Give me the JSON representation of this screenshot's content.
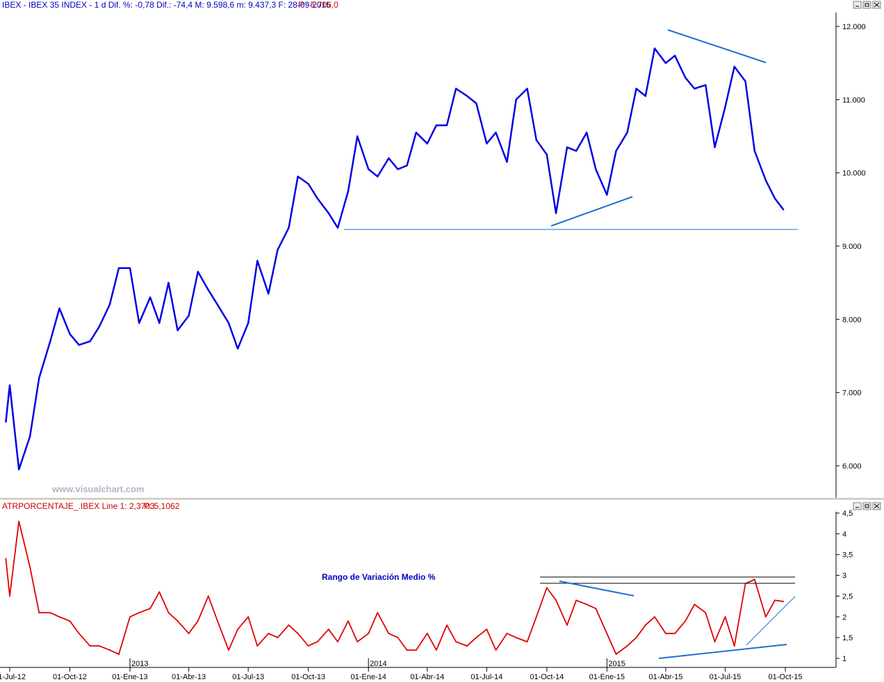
{
  "header": {
    "main_info": "IBEX - IBEX 35 INDEX - 1 d Dif. %: -0,78 Dif.: -74,4 M: 9.598,6 m: 9.437,3 F: 28-09-2015",
    "main_p": "P : 5.706,0",
    "lower_info": "ATRPORCENTAJE_.IBEX Line 1: 2,3703",
    "lower_p": "P: 5,1062",
    "watermark": "www.visualchart.com",
    "annotation": "Rango de Variación Medio %"
  },
  "colors": {
    "price": "#0000e6",
    "atr": "#e00000",
    "trendline": "#1f6fd1",
    "text_blue": "#0000c0",
    "text_red": "#cc0000"
  },
  "chart_data": [
    {
      "type": "line",
      "title": "IBEX - IBEX 35 INDEX",
      "ylim": [
        5500,
        12300
      ],
      "yticks": [
        "12.000",
        "11.000",
        "10.000",
        "9.000",
        "8.000",
        "7.000",
        "6.000"
      ],
      "ytick_values": [
        12000,
        11000,
        10000,
        9000,
        8000,
        7000,
        6000
      ],
      "x": [
        "2012-06-25",
        "2012-07-01",
        "2012-07-15",
        "2012-08-01",
        "2012-08-15",
        "2012-09-01",
        "2012-09-15",
        "2012-10-01",
        "2012-10-15",
        "2012-11-01",
        "2012-11-15",
        "2012-12-01",
        "2012-12-15",
        "2013-01-01",
        "2013-01-15",
        "2013-02-01",
        "2013-02-15",
        "2013-03-01",
        "2013-03-15",
        "2013-04-01",
        "2013-04-15",
        "2013-05-01",
        "2013-05-15",
        "2013-06-01",
        "2013-06-15",
        "2013-07-01",
        "2013-07-15",
        "2013-08-01",
        "2013-08-15",
        "2013-09-01",
        "2013-09-15",
        "2013-10-01",
        "2013-10-15",
        "2013-11-01",
        "2013-11-15",
        "2013-12-01",
        "2013-12-15",
        "2014-01-01",
        "2014-01-15",
        "2014-02-01",
        "2014-02-15",
        "2014-03-01",
        "2014-03-15",
        "2014-04-01",
        "2014-04-15",
        "2014-05-01",
        "2014-05-15",
        "2014-06-01",
        "2014-06-15",
        "2014-07-01",
        "2014-07-15",
        "2014-08-01",
        "2014-08-15",
        "2014-09-01",
        "2014-09-15",
        "2014-10-01",
        "2014-10-15",
        "2014-11-01",
        "2014-11-15",
        "2014-12-01",
        "2014-12-15",
        "2015-01-01",
        "2015-01-15",
        "2015-02-01",
        "2015-02-15",
        "2015-03-01",
        "2015-03-15",
        "2015-04-01",
        "2015-04-15",
        "2015-05-01",
        "2015-05-15",
        "2015-06-01",
        "2015-06-15",
        "2015-07-01",
        "2015-07-15",
        "2015-08-01",
        "2015-08-15",
        "2015-09-01",
        "2015-09-15",
        "2015-09-28"
      ],
      "series": [
        {
          "name": "IBEX 35",
          "values": [
            6600,
            7100,
            5950,
            6400,
            7200,
            7700,
            8150,
            7800,
            7650,
            7700,
            7900,
            8200,
            8700,
            8700,
            7950,
            8300,
            7950,
            8500,
            7850,
            8050,
            8650,
            8400,
            8200,
            7950,
            7600,
            7950,
            8800,
            8350,
            8950,
            9250,
            9950,
            9850,
            9650,
            9450,
            9250,
            9750,
            10500,
            10050,
            9950,
            10200,
            10050,
            10100,
            10550,
            10400,
            10650,
            10650,
            11150,
            11050,
            10950,
            10400,
            10550,
            10150,
            11000,
            11150,
            10450,
            10250,
            9450,
            10350,
            10300,
            10550,
            10050,
            9700,
            10300,
            10550,
            11150,
            11050,
            11700,
            11500,
            11600,
            11300,
            11150,
            11200,
            10350,
            10900,
            11450,
            11250,
            10300,
            9900,
            9650,
            9500
          ]
        }
      ]
    },
    {
      "type": "line",
      "title": "ATRPORCENTAJE_.IBEX",
      "ylim": [
        0.85,
        4.55
      ],
      "yticks": [
        "4,5",
        "4",
        "3,5",
        "3",
        "2,5",
        "2",
        "1,5",
        "1"
      ],
      "ytick_values": [
        4.5,
        4,
        3.5,
        3,
        2.5,
        2,
        1.5,
        1
      ],
      "xticks": [
        "01-Jul-12",
        "01-Oct-12",
        "01-Ene-13",
        "01-Abr-13",
        "01-Jul-13",
        "01-Oct-13",
        "01-Ene-14",
        "01-Abr-14",
        "01-Jul-14",
        "01-Oct-14",
        "01-Ene-15",
        "01-Abr-15",
        "01-Jul-15",
        "01-Oct-15"
      ],
      "year_labels": [
        "2013",
        "2014",
        "2015"
      ],
      "x": [
        "2012-06-25",
        "2012-07-01",
        "2012-07-15",
        "2012-08-01",
        "2012-08-15",
        "2012-09-01",
        "2012-09-15",
        "2012-10-01",
        "2012-10-15",
        "2012-11-01",
        "2012-11-15",
        "2012-12-01",
        "2012-12-15",
        "2013-01-01",
        "2013-01-15",
        "2013-02-01",
        "2013-02-15",
        "2013-03-01",
        "2013-03-15",
        "2013-04-01",
        "2013-04-15",
        "2013-05-01",
        "2013-05-15",
        "2013-06-01",
        "2013-06-15",
        "2013-07-01",
        "2013-07-15",
        "2013-08-01",
        "2013-08-15",
        "2013-09-01",
        "2013-09-15",
        "2013-10-01",
        "2013-10-15",
        "2013-11-01",
        "2013-11-15",
        "2013-12-01",
        "2013-12-15",
        "2014-01-01",
        "2014-01-15",
        "2014-02-01",
        "2014-02-15",
        "2014-03-01",
        "2014-03-15",
        "2014-04-01",
        "2014-04-15",
        "2014-05-01",
        "2014-05-15",
        "2014-06-01",
        "2014-06-15",
        "2014-07-01",
        "2014-07-15",
        "2014-08-01",
        "2014-08-15",
        "2014-09-01",
        "2014-09-15",
        "2014-10-01",
        "2014-10-15",
        "2014-11-01",
        "2014-11-15",
        "2014-12-01",
        "2014-12-15",
        "2015-01-01",
        "2015-01-15",
        "2015-02-01",
        "2015-02-15",
        "2015-03-01",
        "2015-03-15",
        "2015-04-01",
        "2015-04-15",
        "2015-05-01",
        "2015-05-15",
        "2015-06-01",
        "2015-06-15",
        "2015-07-01",
        "2015-07-15",
        "2015-08-01",
        "2015-08-15",
        "2015-09-01",
        "2015-09-15",
        "2015-09-28"
      ],
      "series": [
        {
          "name": "Line 1",
          "values": [
            3.4,
            2.5,
            4.3,
            3.2,
            2.1,
            2.1,
            2.0,
            1.9,
            1.6,
            1.3,
            1.3,
            1.2,
            1.1,
            2.0,
            2.1,
            2.2,
            2.6,
            2.1,
            1.9,
            1.6,
            1.9,
            2.5,
            1.9,
            1.2,
            1.7,
            2.0,
            1.3,
            1.6,
            1.5,
            1.8,
            1.6,
            1.3,
            1.4,
            1.7,
            1.4,
            1.9,
            1.4,
            1.6,
            2.1,
            1.6,
            1.5,
            1.2,
            1.2,
            1.6,
            1.2,
            1.8,
            1.4,
            1.3,
            1.5,
            1.7,
            1.2,
            1.6,
            1.5,
            1.4,
            2.0,
            2.7,
            2.4,
            1.8,
            2.4,
            2.3,
            2.2,
            1.6,
            1.1,
            1.3,
            1.5,
            1.8,
            2.0,
            1.6,
            1.6,
            1.9,
            2.3,
            2.1,
            1.4,
            2.0,
            1.3,
            2.8,
            2.9,
            2.0,
            2.4,
            2.37
          ]
        }
      ]
    }
  ]
}
